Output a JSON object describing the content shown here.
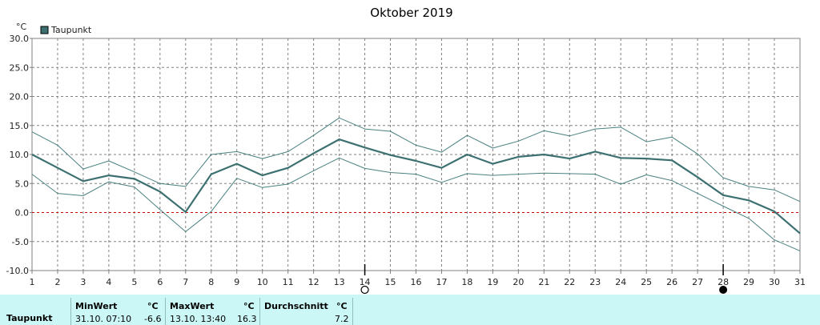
{
  "chart_data": {
    "type": "line",
    "title": "Oktober 2019",
    "unit": "°C",
    "ylim": [
      -10,
      30
    ],
    "yticks": [
      30.0,
      25.0,
      20.0,
      15.0,
      10.0,
      5.0,
      0.0,
      -5.0,
      -10.0
    ],
    "ytick_labels": [
      "30.0",
      "25.0",
      "20.0",
      "15.0",
      "10.0",
      "5.0",
      "0.0",
      "-5.0",
      "-10.0"
    ],
    "x": [
      1,
      2,
      3,
      4,
      5,
      6,
      7,
      8,
      9,
      10,
      11,
      12,
      13,
      14,
      15,
      16,
      17,
      18,
      19,
      20,
      21,
      22,
      23,
      24,
      25,
      26,
      27,
      28,
      29,
      30,
      31
    ],
    "grid": true,
    "legend": "top-left",
    "series": [
      {
        "name": "Taupunkt",
        "color": "#3d7070",
        "values": [
          10.0,
          7.7,
          5.4,
          6.4,
          5.8,
          3.6,
          0.1,
          6.6,
          8.4,
          6.4,
          7.7,
          10.2,
          12.6,
          11.2,
          9.9,
          8.9,
          7.7,
          10.0,
          8.4,
          9.6,
          10.0,
          9.3,
          10.5,
          9.4,
          9.3,
          9.0,
          6.1,
          3.0,
          2.1,
          0.2,
          -3.6
        ]
      },
      {
        "color": "#4a8080",
        "values": [
          13.9,
          11.6,
          7.5,
          8.9,
          7.0,
          5.0,
          4.5,
          10.0,
          10.5,
          9.3,
          10.5,
          13.3,
          16.3,
          14.4,
          14.0,
          11.6,
          10.4,
          13.3,
          11.1,
          12.3,
          14.1,
          13.2,
          14.4,
          14.7,
          12.2,
          13.0,
          10.1,
          6.0,
          4.5,
          3.9,
          1.9
        ]
      },
      {
        "color": "#4a8080",
        "values": [
          6.6,
          3.3,
          2.9,
          5.3,
          4.4,
          0.5,
          -3.3,
          0.2,
          5.9,
          4.3,
          4.9,
          7.2,
          9.4,
          7.6,
          6.9,
          6.6,
          5.2,
          6.7,
          6.4,
          6.6,
          6.8,
          6.7,
          6.6,
          4.9,
          6.5,
          5.5,
          3.3,
          1.1,
          -1.0,
          -4.7,
          -6.6
        ]
      }
    ],
    "zero_line": {
      "value": 0,
      "color": "#cc0000"
    },
    "moon_markers": [
      {
        "day": 14,
        "phase": "full"
      },
      {
        "day": 28,
        "phase": "new"
      }
    ]
  },
  "footer": {
    "row_label": "Taupunkt",
    "min_header": "MinWert",
    "max_header": "MaxWert",
    "avg_header": "Durchschnitt",
    "unit": "°C",
    "min_when": "31.10.  07:10",
    "min_value": "-6.6",
    "max_when": "13.10.  13:40",
    "max_value": "16.3",
    "avg_value": "7.2"
  }
}
